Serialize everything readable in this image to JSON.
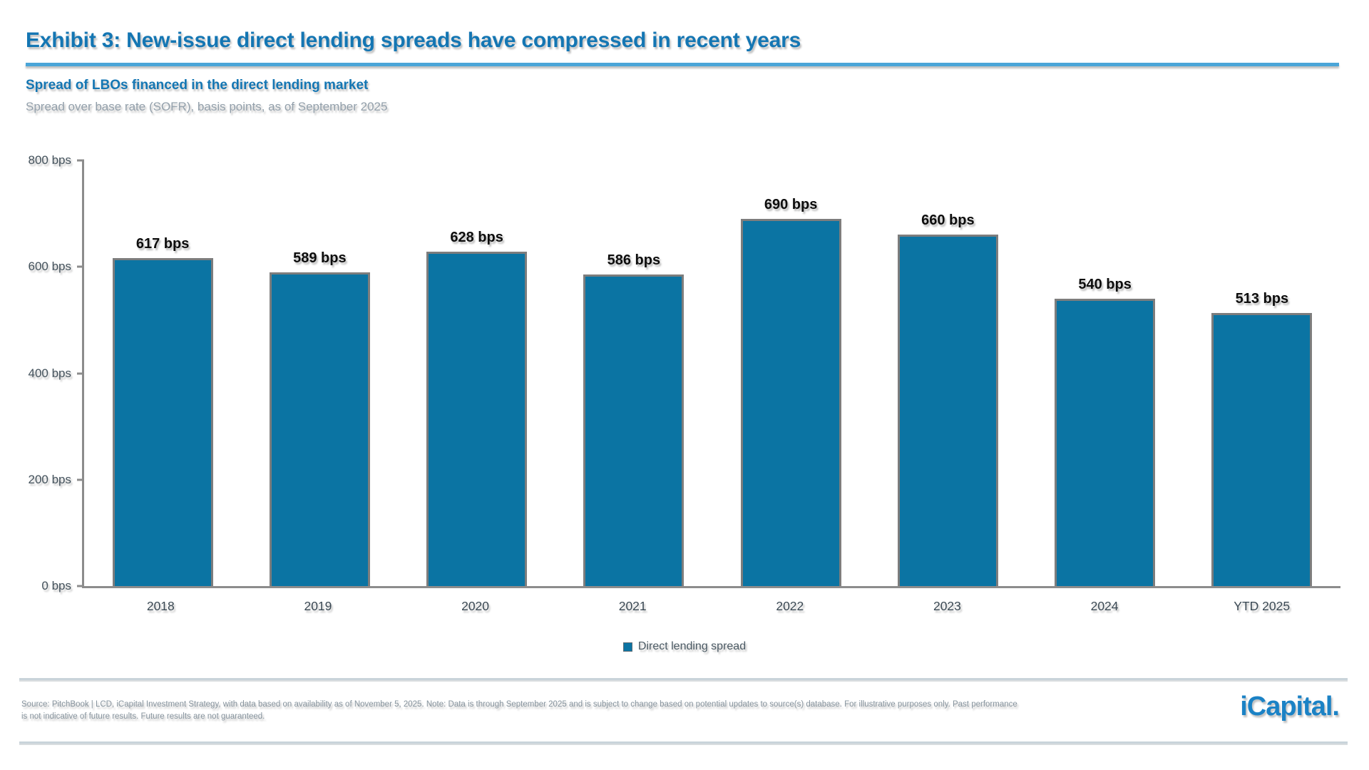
{
  "header": {
    "title": "Exhibit 3: New-issue direct lending spreads have compressed in recent years"
  },
  "chart": {
    "subtitle": "Spread of LBOs financed in the direct lending market",
    "caption": "Spread over base rate (SOFR), basis points, as of September 2025"
  },
  "chart_data": {
    "type": "bar",
    "title": "Spread of LBOs financed in the direct lending market",
    "subtitle": "Spread over base rate (SOFR), basis points, as of September 2025",
    "categories": [
      "2018",
      "2019",
      "2020",
      "2021",
      "2022",
      "2023",
      "2024",
      "YTD 2025"
    ],
    "values": [
      617,
      589,
      628,
      586,
      690,
      660,
      540,
      513
    ],
    "value_labels": [
      "617 bps",
      "589 bps",
      "628 bps",
      "586 bps",
      "690 bps",
      "660 bps",
      "540 bps",
      "513 bps"
    ],
    "unit": "bps",
    "ylim": [
      0,
      800
    ],
    "yticks": [
      800,
      600,
      400,
      200,
      0
    ],
    "ytick_labels": [
      "800 bps",
      "600 bps",
      "400 bps",
      "200 bps",
      "0 bps"
    ],
    "xlabel": "",
    "ylabel": "",
    "grid": false,
    "legend_position": "bottom-center",
    "legend": [
      {
        "label": "Direct lending spread",
        "color": "#0b74a3"
      }
    ],
    "bar_color": "#0b74a3"
  },
  "footer": {
    "disclaimer": "Source: PitchBook | LCD, iCapital Investment Strategy, with data based on availability as of November 5, 2025. Note: Data is through September 2025 and is subject to change based on potential updates to source(s) database. For illustrative purposes only. Past performance is not indicative of future results. Future results are not guaranteed.",
    "logo_text": "iCapital."
  },
  "colors": {
    "title_blue": "#1476b3",
    "underline_blue": "#4aa5d8",
    "bar_blue": "#0b74a3",
    "axis_gray": "#8c8c8c",
    "tick_label": "#44525c",
    "footer_gray": "#87949e",
    "logo_blue": "#1b82c5"
  }
}
